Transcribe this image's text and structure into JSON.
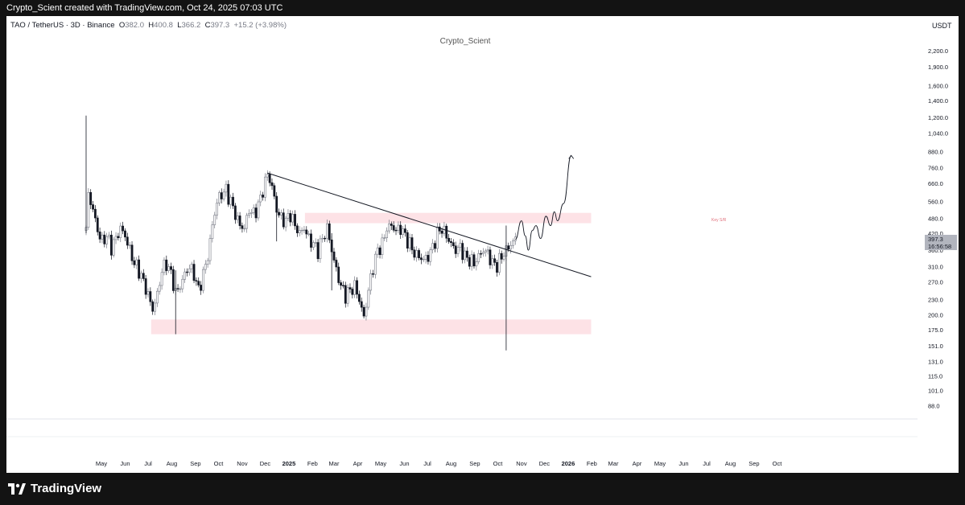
{
  "header": {
    "credit": "Crypto_Scient created with TradingView.com, Oct 24, 2025 07:03 UTC"
  },
  "legend": {
    "symbol": "TAO / TetherUS · 3D · Binance",
    "open_label": "O",
    "open": "382.0",
    "high_label": "H",
    "high": "400.8",
    "low_label": "L",
    "low": "366.2",
    "close_label": "C",
    "close": "397.3",
    "change": "+15.2 (+3.98%)"
  },
  "watermark": "Crypto_Scient",
  "currency": "USDT",
  "price_label": {
    "price": "397.3",
    "countdown": "16:56:58"
  },
  "zone_label": "Key S/R",
  "brand": "TradingView",
  "colors": {
    "up": "#787b86",
    "down": "#131722",
    "zone": "#fde2e6",
    "price_tag": "#b2b5be"
  },
  "chart_data": {
    "type": "candlestick",
    "scale": "log",
    "y_ticks": [
      2200,
      1900,
      1600,
      1400,
      1200,
      1040,
      880,
      760,
      660,
      560,
      480,
      420,
      360,
      310,
      270,
      230,
      200,
      175,
      151,
      131,
      115,
      101,
      88
    ],
    "y_tick_labels": [
      "2,200.0",
      "1,900.0",
      "1,600.0",
      "1,400.0",
      "1,200.0",
      "1,040.0",
      "880.0",
      "760.0",
      "660.0",
      "560.0",
      "480.0",
      "420.0",
      "360.0",
      "310.0",
      "270.0",
      "230.0",
      "200.0",
      "175.0",
      "151.0",
      "131.0",
      "115.0",
      "101.0",
      "88.0"
    ],
    "x_ticks": [
      {
        "label": "May",
        "date": "2024-05-01",
        "bold": false
      },
      {
        "label": "Jun",
        "date": "2024-06-01",
        "bold": false
      },
      {
        "label": "Jul",
        "date": "2024-07-01",
        "bold": false
      },
      {
        "label": "Aug",
        "date": "2024-08-01",
        "bold": false
      },
      {
        "label": "Sep",
        "date": "2024-09-01",
        "bold": false
      },
      {
        "label": "Oct",
        "date": "2024-10-01",
        "bold": false
      },
      {
        "label": "Nov",
        "date": "2024-11-01",
        "bold": false
      },
      {
        "label": "Dec",
        "date": "2024-12-01",
        "bold": false
      },
      {
        "label": "2025",
        "date": "2025-01-01",
        "bold": true
      },
      {
        "label": "Feb",
        "date": "2025-02-01",
        "bold": false
      },
      {
        "label": "Mar",
        "date": "2025-03-01",
        "bold": false
      },
      {
        "label": "Apr",
        "date": "2025-04-01",
        "bold": false
      },
      {
        "label": "May",
        "date": "2025-05-01",
        "bold": false
      },
      {
        "label": "Jun",
        "date": "2025-06-01",
        "bold": false
      },
      {
        "label": "Jul",
        "date": "2025-07-01",
        "bold": false
      },
      {
        "label": "Aug",
        "date": "2025-08-01",
        "bold": false
      },
      {
        "label": "Sep",
        "date": "2025-09-01",
        "bold": false
      },
      {
        "label": "Oct",
        "date": "2025-10-01",
        "bold": false
      },
      {
        "label": "Nov",
        "date": "2025-11-01",
        "bold": false
      },
      {
        "label": "Dec",
        "date": "2025-12-01",
        "bold": false
      },
      {
        "label": "2026",
        "date": "2026-01-01",
        "bold": true
      },
      {
        "label": "Feb",
        "date": "2026-02-01",
        "bold": false
      },
      {
        "label": "Mar",
        "date": "2026-03-01",
        "bold": false
      },
      {
        "label": "Apr",
        "date": "2026-04-01",
        "bold": false
      },
      {
        "label": "May",
        "date": "2026-05-01",
        "bold": false
      },
      {
        "label": "Jun",
        "date": "2026-06-01",
        "bold": false
      },
      {
        "label": "Jul",
        "date": "2026-07-01",
        "bold": false
      },
      {
        "label": "Aug",
        "date": "2026-08-01",
        "bold": false
      },
      {
        "label": "Sep",
        "date": "2026-09-01",
        "bold": false
      },
      {
        "label": "Oct",
        "date": "2026-10-01",
        "bold": false
      }
    ],
    "price_path": [
      [
        "2024-04-11",
        430
      ],
      [
        "2024-04-14",
        600
      ],
      [
        "2024-04-20",
        520
      ],
      [
        "2024-04-26",
        430
      ],
      [
        "2024-05-02",
        390
      ],
      [
        "2024-05-08",
        410
      ],
      [
        "2024-05-14",
        370
      ],
      [
        "2024-05-20",
        400
      ],
      [
        "2024-05-26",
        440
      ],
      [
        "2024-06-01",
        410
      ],
      [
        "2024-06-07",
        360
      ],
      [
        "2024-06-13",
        320
      ],
      [
        "2024-06-19",
        300
      ],
      [
        "2024-06-25",
        270
      ],
      [
        "2024-07-01",
        240
      ],
      [
        "2024-07-07",
        210
      ],
      [
        "2024-07-13",
        240
      ],
      [
        "2024-07-19",
        300
      ],
      [
        "2024-07-25",
        320
      ],
      [
        "2024-07-31",
        290
      ],
      [
        "2024-08-06",
        245
      ],
      [
        "2024-08-12",
        260
      ],
      [
        "2024-08-18",
        290
      ],
      [
        "2024-08-24",
        310
      ],
      [
        "2024-08-30",
        290
      ],
      [
        "2024-09-05",
        250
      ],
      [
        "2024-09-11",
        290
      ],
      [
        "2024-09-17",
        340
      ],
      [
        "2024-09-23",
        450
      ],
      [
        "2024-09-29",
        560
      ],
      [
        "2024-10-05",
        600
      ],
      [
        "2024-10-11",
        620
      ],
      [
        "2024-10-17",
        560
      ],
      [
        "2024-10-23",
        500
      ],
      [
        "2024-10-29",
        450
      ],
      [
        "2024-11-04",
        440
      ],
      [
        "2024-11-10",
        520
      ],
      [
        "2024-11-16",
        500
      ],
      [
        "2024-11-22",
        540
      ],
      [
        "2024-11-28",
        620
      ],
      [
        "2024-12-04",
        720
      ],
      [
        "2024-12-10",
        640
      ],
      [
        "2024-12-16",
        520
      ],
      [
        "2024-12-22",
        480
      ],
      [
        "2024-12-28",
        470
      ],
      [
        "2025-01-03",
        500
      ],
      [
        "2025-01-09",
        450
      ],
      [
        "2025-01-15",
        420
      ],
      [
        "2025-01-21",
        440
      ],
      [
        "2025-01-27",
        400
      ],
      [
        "2025-02-02",
        380
      ],
      [
        "2025-02-08",
        360
      ],
      [
        "2025-02-14",
        400
      ],
      [
        "2025-02-20",
        440
      ],
      [
        "2025-02-26",
        360
      ],
      [
        "2025-03-04",
        300
      ],
      [
        "2025-03-10",
        260
      ],
      [
        "2025-03-16",
        240
      ],
      [
        "2025-03-22",
        250
      ],
      [
        "2025-03-28",
        260
      ],
      [
        "2025-04-03",
        230
      ],
      [
        "2025-04-09",
        195
      ],
      [
        "2025-04-15",
        250
      ],
      [
        "2025-04-21",
        310
      ],
      [
        "2025-04-27",
        360
      ],
      [
        "2025-05-03",
        380
      ],
      [
        "2025-05-09",
        440
      ],
      [
        "2025-05-15",
        450
      ],
      [
        "2025-05-21",
        430
      ],
      [
        "2025-05-27",
        440
      ],
      [
        "2025-06-02",
        410
      ],
      [
        "2025-06-08",
        380
      ],
      [
        "2025-06-14",
        350
      ],
      [
        "2025-06-20",
        340
      ],
      [
        "2025-06-26",
        330
      ],
      [
        "2025-07-02",
        340
      ],
      [
        "2025-07-08",
        370
      ],
      [
        "2025-07-14",
        420
      ],
      [
        "2025-07-20",
        440
      ],
      [
        "2025-07-26",
        410
      ],
      [
        "2025-08-01",
        380
      ],
      [
        "2025-08-07",
        360
      ],
      [
        "2025-08-13",
        370
      ],
      [
        "2025-08-19",
        340
      ],
      [
        "2025-08-25",
        330
      ],
      [
        "2025-08-31",
        320
      ],
      [
        "2025-09-06",
        340
      ],
      [
        "2025-09-12",
        360
      ],
      [
        "2025-09-18",
        350
      ],
      [
        "2025-09-24",
        320
      ],
      [
        "2025-09-30",
        315
      ],
      [
        "2025-10-06",
        340
      ],
      [
        "2025-10-12",
        360
      ],
      [
        "2025-10-18",
        380
      ],
      [
        "2025-10-24",
        397
      ]
    ],
    "wicks": [
      {
        "date": "2024-04-11",
        "high": 1220,
        "low": 420
      },
      {
        "date": "2024-08-06",
        "high": 300,
        "low": 168
      },
      {
        "date": "2024-12-16",
        "high": 560,
        "low": 390
      },
      {
        "date": "2025-02-26",
        "high": 420,
        "low": 250
      },
      {
        "date": "2025-10-12",
        "high": 450,
        "low": 145
      }
    ],
    "annotations": {
      "trendline": {
        "from": [
          "2024-12-04",
          725
        ],
        "to": [
          "2026-01-31",
          283
        ]
      },
      "support_zone": {
        "from": "2024-07-05",
        "to": "2026-01-31",
        "low": 168,
        "high": 192
      },
      "resistance_zone": {
        "from": "2025-01-22",
        "to": "2026-01-31",
        "low": 460,
        "high": 505
      },
      "projection": [
        [
          "2025-10-24",
          397
        ],
        [
          "2025-11-01",
          470
        ],
        [
          "2025-11-06",
          410
        ],
        [
          "2025-11-10",
          360
        ],
        [
          "2025-11-15",
          430
        ],
        [
          "2025-11-20",
          450
        ],
        [
          "2025-11-26",
          400
        ],
        [
          "2025-12-03",
          490
        ],
        [
          "2025-12-09",
          450
        ],
        [
          "2025-12-14",
          510
        ],
        [
          "2025-12-18",
          470
        ],
        [
          "2025-12-26",
          550
        ],
        [
          "2026-01-05",
          850
        ]
      ]
    }
  }
}
